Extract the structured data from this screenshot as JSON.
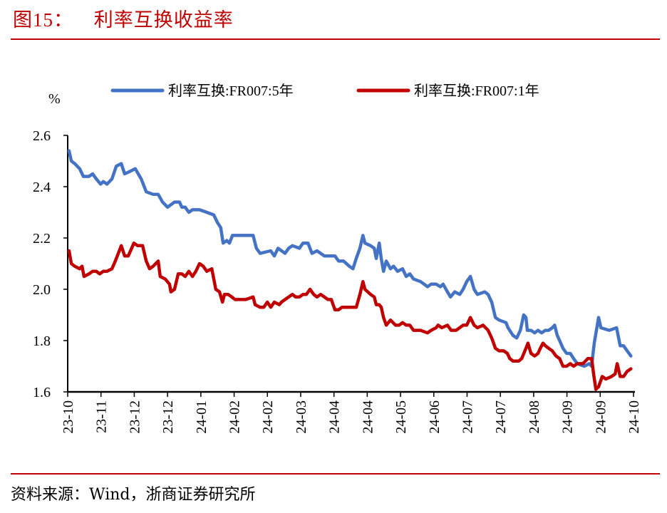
{
  "figure": {
    "label": "图15：",
    "title": "利率互换收益率",
    "source": "资料来源：Wind，浙商证券研究所"
  },
  "chart_data": {
    "type": "line",
    "title": "利率互换收益率",
    "ylabel": "%",
    "xlabel": "",
    "ylim": [
      1.6,
      2.6
    ],
    "yticks": [
      1.6,
      1.8,
      2.0,
      2.2,
      2.4,
      2.6
    ],
    "ytick_labels": [
      "1.6",
      "1.8",
      "2.0",
      "2.2",
      "2.4",
      "2.6"
    ],
    "x_tick_labels": [
      "23-10",
      "23-11",
      "23-12",
      "23-12",
      "24-01",
      "24-02",
      "24-02",
      "24-03",
      "24-04",
      "24-04",
      "24-05",
      "24-06",
      "24-07",
      "24-07",
      "24-08",
      "24-09",
      "24-09",
      "24-10"
    ],
    "x_unit_note": "x values are positions measured in tick intervals from the first tick label",
    "xlim": [
      0,
      17
    ],
    "grid": false,
    "legend_position": "top",
    "series": [
      {
        "name": "利率互换:FR007:5年",
        "color": "#4472c4",
        "points": [
          [
            0.04,
            2.54
          ],
          [
            0.11,
            2.5
          ],
          [
            0.21,
            2.49
          ],
          [
            0.36,
            2.47
          ],
          [
            0.47,
            2.44
          ],
          [
            0.64,
            2.44
          ],
          [
            0.75,
            2.45
          ],
          [
            0.86,
            2.43
          ],
          [
            0.99,
            2.41
          ],
          [
            1.07,
            2.42
          ],
          [
            1.18,
            2.41
          ],
          [
            1.33,
            2.43
          ],
          [
            1.46,
            2.48
          ],
          [
            1.61,
            2.49
          ],
          [
            1.71,
            2.45
          ],
          [
            1.88,
            2.46
          ],
          [
            2.03,
            2.47
          ],
          [
            2.21,
            2.43
          ],
          [
            2.36,
            2.38
          ],
          [
            2.57,
            2.37
          ],
          [
            2.72,
            2.37
          ],
          [
            2.85,
            2.34
          ],
          [
            3.0,
            2.32
          ],
          [
            3.21,
            2.34
          ],
          [
            3.36,
            2.34
          ],
          [
            3.43,
            2.32
          ],
          [
            3.53,
            2.32
          ],
          [
            3.64,
            2.3
          ],
          [
            3.75,
            2.31
          ],
          [
            3.85,
            2.31
          ],
          [
            3.96,
            2.31
          ],
          [
            4.18,
            2.3
          ],
          [
            4.39,
            2.29
          ],
          [
            4.5,
            2.26
          ],
          [
            4.6,
            2.24
          ],
          [
            4.67,
            2.18
          ],
          [
            4.78,
            2.19
          ],
          [
            4.86,
            2.18
          ],
          [
            4.95,
            2.21
          ],
          [
            5.14,
            2.21
          ],
          [
            5.57,
            2.21
          ],
          [
            5.67,
            2.16
          ],
          [
            5.78,
            2.14
          ],
          [
            6.1,
            2.15
          ],
          [
            6.21,
            2.13
          ],
          [
            6.32,
            2.16
          ],
          [
            6.53,
            2.14
          ],
          [
            6.64,
            2.16
          ],
          [
            6.75,
            2.17
          ],
          [
            6.96,
            2.16
          ],
          [
            7.07,
            2.18
          ],
          [
            7.22,
            2.18
          ],
          [
            7.34,
            2.14
          ],
          [
            7.49,
            2.15
          ],
          [
            7.71,
            2.13
          ],
          [
            8.03,
            2.13
          ],
          [
            8.14,
            2.11
          ],
          [
            8.29,
            2.11
          ],
          [
            8.46,
            2.09
          ],
          [
            8.57,
            2.08
          ],
          [
            8.67,
            2.12
          ],
          [
            8.78,
            2.16
          ],
          [
            8.87,
            2.21
          ],
          [
            8.93,
            2.18
          ],
          [
            9.1,
            2.17
          ],
          [
            9.21,
            2.16
          ],
          [
            9.27,
            2.12
          ],
          [
            9.36,
            2.18
          ],
          [
            9.42,
            2.12
          ],
          [
            9.49,
            2.07
          ],
          [
            9.57,
            2.11
          ],
          [
            9.7,
            2.08
          ],
          [
            9.79,
            2.09
          ],
          [
            9.91,
            2.07
          ],
          [
            10.06,
            2.08
          ],
          [
            10.17,
            2.05
          ],
          [
            10.28,
            2.06
          ],
          [
            10.39,
            2.04
          ],
          [
            10.6,
            2.03
          ],
          [
            10.71,
            2.02
          ],
          [
            10.81,
            2.01
          ],
          [
            10.92,
            2.02
          ],
          [
            11.07,
            2.02
          ],
          [
            11.2,
            2.01
          ],
          [
            11.28,
            2.02
          ],
          [
            11.41,
            1.99
          ],
          [
            11.5,
            1.97
          ],
          [
            11.63,
            1.99
          ],
          [
            11.78,
            1.98
          ],
          [
            11.88,
            2.0
          ],
          [
            11.99,
            2.03
          ],
          [
            12.1,
            2.05
          ],
          [
            12.21,
            2.0
          ],
          [
            12.31,
            1.98
          ],
          [
            12.53,
            1.99
          ],
          [
            12.63,
            1.98
          ],
          [
            12.74,
            1.95
          ],
          [
            12.85,
            1.89
          ],
          [
            12.96,
            1.88
          ],
          [
            13.17,
            1.87
          ],
          [
            13.23,
            1.85
          ],
          [
            13.38,
            1.82
          ],
          [
            13.49,
            1.81
          ],
          [
            13.6,
            1.84
          ],
          [
            13.7,
            1.9
          ],
          [
            13.77,
            1.89
          ],
          [
            13.81,
            1.84
          ],
          [
            13.92,
            1.84
          ],
          [
            14.03,
            1.83
          ],
          [
            14.13,
            1.84
          ],
          [
            14.24,
            1.83
          ],
          [
            14.35,
            1.84
          ],
          [
            14.45,
            1.84
          ],
          [
            14.56,
            1.85
          ],
          [
            14.63,
            1.86
          ],
          [
            14.71,
            1.82
          ],
          [
            14.78,
            1.8
          ],
          [
            14.88,
            1.77
          ],
          [
            14.99,
            1.75
          ],
          [
            15.1,
            1.75
          ],
          [
            15.2,
            1.73
          ],
          [
            15.31,
            1.71
          ],
          [
            15.52,
            1.7
          ],
          [
            15.67,
            1.71
          ],
          [
            15.74,
            1.7
          ],
          [
            15.82,
            1.79
          ],
          [
            15.95,
            1.89
          ],
          [
            16.02,
            1.85
          ],
          [
            16.27,
            1.84
          ],
          [
            16.49,
            1.85
          ],
          [
            16.6,
            1.78
          ],
          [
            16.7,
            1.78
          ],
          [
            16.81,
            1.76
          ],
          [
            16.92,
            1.74
          ]
        ]
      },
      {
        "name": "利率互换:FR007:1年",
        "color": "#c00000",
        "points": [
          [
            0.04,
            2.15
          ],
          [
            0.11,
            2.1
          ],
          [
            0.21,
            2.09
          ],
          [
            0.36,
            2.08
          ],
          [
            0.43,
            2.09
          ],
          [
            0.49,
            2.05
          ],
          [
            0.64,
            2.06
          ],
          [
            0.75,
            2.07
          ],
          [
            0.86,
            2.07
          ],
          [
            0.96,
            2.06
          ],
          [
            1.07,
            2.07
          ],
          [
            1.18,
            2.07
          ],
          [
            1.33,
            2.08
          ],
          [
            1.43,
            2.11
          ],
          [
            1.61,
            2.17
          ],
          [
            1.71,
            2.13
          ],
          [
            1.82,
            2.13
          ],
          [
            1.99,
            2.18
          ],
          [
            2.1,
            2.17
          ],
          [
            2.25,
            2.17
          ],
          [
            2.36,
            2.11
          ],
          [
            2.46,
            2.08
          ],
          [
            2.57,
            2.09
          ],
          [
            2.72,
            2.11
          ],
          [
            2.78,
            2.05
          ],
          [
            2.93,
            2.04
          ],
          [
            3.06,
            2.02
          ],
          [
            3.1,
            1.99
          ],
          [
            3.21,
            2.0
          ],
          [
            3.32,
            2.06
          ],
          [
            3.43,
            2.06
          ],
          [
            3.53,
            2.05
          ],
          [
            3.64,
            2.07
          ],
          [
            3.75,
            2.05
          ],
          [
            3.85,
            2.07
          ],
          [
            3.96,
            2.1
          ],
          [
            4.07,
            2.09
          ],
          [
            4.18,
            2.07
          ],
          [
            4.33,
            2.08
          ],
          [
            4.39,
            2.04
          ],
          [
            4.45,
            2.0
          ],
          [
            4.56,
            1.99
          ],
          [
            4.65,
            1.95
          ],
          [
            4.71,
            1.98
          ],
          [
            4.82,
            1.98
          ],
          [
            4.93,
            1.97
          ],
          [
            5.03,
            1.96
          ],
          [
            5.35,
            1.96
          ],
          [
            5.57,
            1.97
          ],
          [
            5.63,
            1.94
          ],
          [
            5.78,
            1.93
          ],
          [
            5.89,
            1.93
          ],
          [
            6.0,
            1.95
          ],
          [
            6.1,
            1.93
          ],
          [
            6.21,
            1.95
          ],
          [
            6.36,
            1.94
          ],
          [
            6.42,
            1.95
          ],
          [
            6.53,
            1.96
          ],
          [
            6.64,
            1.97
          ],
          [
            6.75,
            1.98
          ],
          [
            6.85,
            1.97
          ],
          [
            6.96,
            1.97
          ],
          [
            7.07,
            1.98
          ],
          [
            7.17,
            1.98
          ],
          [
            7.28,
            2.0
          ],
          [
            7.39,
            1.98
          ],
          [
            7.49,
            1.97
          ],
          [
            7.6,
            1.98
          ],
          [
            7.82,
            1.96
          ],
          [
            7.92,
            1.96
          ],
          [
            8.03,
            1.92
          ],
          [
            8.14,
            1.92
          ],
          [
            8.24,
            1.93
          ],
          [
            8.46,
            1.93
          ],
          [
            8.67,
            1.93
          ],
          [
            8.78,
            1.98
          ],
          [
            8.87,
            2.03
          ],
          [
            8.93,
            2.0
          ],
          [
            9.1,
            1.98
          ],
          [
            9.21,
            1.97
          ],
          [
            9.27,
            1.94
          ],
          [
            9.36,
            1.94
          ],
          [
            9.42,
            1.93
          ],
          [
            9.49,
            1.89
          ],
          [
            9.57,
            1.86
          ],
          [
            9.7,
            1.88
          ],
          [
            9.85,
            1.86
          ],
          [
            9.96,
            1.86
          ],
          [
            10.06,
            1.87
          ],
          [
            10.17,
            1.86
          ],
          [
            10.28,
            1.86
          ],
          [
            10.39,
            1.84
          ],
          [
            10.6,
            1.84
          ],
          [
            10.81,
            1.83
          ],
          [
            10.92,
            1.84
          ],
          [
            11.07,
            1.85
          ],
          [
            11.13,
            1.86
          ],
          [
            11.24,
            1.85
          ],
          [
            11.41,
            1.86
          ],
          [
            11.52,
            1.84
          ],
          [
            11.67,
            1.84
          ],
          [
            11.88,
            1.86
          ],
          [
            11.99,
            1.86
          ],
          [
            12.1,
            1.89
          ],
          [
            12.21,
            1.86
          ],
          [
            12.31,
            1.85
          ],
          [
            12.48,
            1.86
          ],
          [
            12.63,
            1.84
          ],
          [
            12.74,
            1.81
          ],
          [
            12.85,
            1.77
          ],
          [
            12.96,
            1.76
          ],
          [
            13.1,
            1.76
          ],
          [
            13.21,
            1.75
          ],
          [
            13.28,
            1.73
          ],
          [
            13.38,
            1.72
          ],
          [
            13.55,
            1.72
          ],
          [
            13.64,
            1.73
          ],
          [
            13.77,
            1.77
          ],
          [
            13.83,
            1.79
          ],
          [
            13.92,
            1.75
          ],
          [
            14.03,
            1.74
          ],
          [
            14.13,
            1.75
          ],
          [
            14.2,
            1.77
          ],
          [
            14.28,
            1.79
          ],
          [
            14.35,
            1.78
          ],
          [
            14.45,
            1.77
          ],
          [
            14.56,
            1.76
          ],
          [
            14.67,
            1.74
          ],
          [
            14.78,
            1.73
          ],
          [
            14.88,
            1.7
          ],
          [
            14.99,
            1.7
          ],
          [
            15.1,
            1.71
          ],
          [
            15.2,
            1.7
          ],
          [
            15.31,
            1.71
          ],
          [
            15.48,
            1.71
          ],
          [
            15.63,
            1.73
          ],
          [
            15.74,
            1.73
          ],
          [
            15.8,
            1.67
          ],
          [
            15.87,
            1.61
          ],
          [
            15.95,
            1.62
          ],
          [
            16.06,
            1.66
          ],
          [
            16.17,
            1.65
          ],
          [
            16.34,
            1.66
          ],
          [
            16.45,
            1.67
          ],
          [
            16.51,
            1.71
          ],
          [
            16.6,
            1.66
          ],
          [
            16.7,
            1.66
          ],
          [
            16.81,
            1.68
          ],
          [
            16.92,
            1.69
          ]
        ]
      }
    ]
  }
}
